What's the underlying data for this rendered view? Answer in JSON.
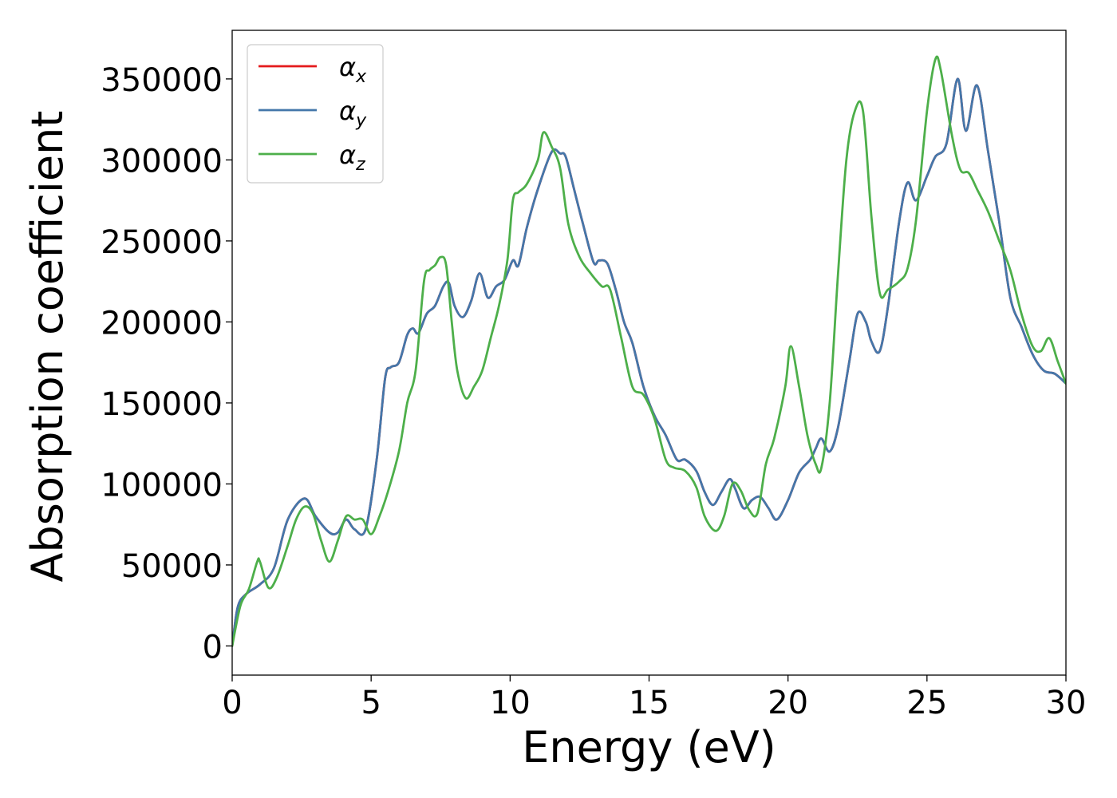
{
  "chart_data": {
    "type": "line",
    "title": "",
    "xlabel": "Energy (eV)",
    "ylabel": "Absorption coefficient",
    "xlim": [
      0,
      30
    ],
    "ylim": [
      -18000,
      380000
    ],
    "xticks": [
      0,
      5,
      10,
      15,
      20,
      25,
      30
    ],
    "yticks": [
      0,
      50000,
      100000,
      150000,
      200000,
      250000,
      300000,
      350000
    ],
    "xtick_labels": [
      "0",
      "5",
      "10",
      "15",
      "20",
      "25",
      "30"
    ],
    "ytick_labels": [
      "0",
      "50000",
      "100000",
      "150000",
      "200000",
      "250000",
      "300000",
      "350000"
    ],
    "grid": false,
    "legend_position": "top-left",
    "series": [
      {
        "name": "α",
        "subscript": "x",
        "color": "#e41a1c",
        "x": [
          0,
          0.2,
          0.5,
          1.0,
          1.5,
          2.0,
          2.6,
          3.0,
          3.5,
          3.8,
          4.1,
          4.4,
          4.8,
          5.2,
          5.5,
          5.7,
          6.0,
          6.3,
          6.5,
          6.7,
          7.0,
          7.3,
          7.6,
          7.8,
          8.0,
          8.3,
          8.6,
          8.9,
          9.2,
          9.5,
          9.8,
          10.1,
          10.3,
          10.6,
          11.0,
          11.5,
          11.8,
          12.0,
          12.3,
          12.6,
          13.0,
          13.2,
          13.5,
          13.8,
          14.1,
          14.4,
          14.8,
          15.2,
          15.6,
          16.0,
          16.3,
          16.7,
          17.0,
          17.3,
          17.6,
          17.9,
          18.1,
          18.4,
          18.7,
          19.0,
          19.3,
          19.6,
          20.0,
          20.4,
          20.8,
          21.0,
          21.2,
          21.5,
          21.8,
          22.2,
          22.5,
          22.8,
          23.0,
          23.3,
          23.6,
          24.0,
          24.3,
          24.6,
          25.0,
          25.3,
          25.7,
          26.1,
          26.4,
          26.8,
          27.2,
          27.6,
          28.0,
          28.4,
          28.8,
          29.2,
          29.6,
          30.0
        ],
        "y": [
          0,
          24000,
          32000,
          38000,
          48000,
          78000,
          91000,
          80000,
          70000,
          70000,
          78000,
          72000,
          72000,
          115000,
          165000,
          172000,
          175000,
          192000,
          196000,
          193000,
          205000,
          210000,
          222000,
          224000,
          210000,
          203000,
          213000,
          230000,
          215000,
          222000,
          226000,
          238000,
          235000,
          258000,
          282000,
          305000,
          304000,
          302000,
          282000,
          262000,
          237000,
          238000,
          236000,
          220000,
          200000,
          187000,
          160000,
          142000,
          130000,
          115000,
          115000,
          108000,
          95000,
          87000,
          95000,
          103000,
          97000,
          85000,
          90000,
          92000,
          85000,
          78000,
          90000,
          107000,
          115000,
          122000,
          128000,
          120000,
          135000,
          175000,
          205000,
          200000,
          188000,
          182000,
          210000,
          262000,
          286000,
          275000,
          290000,
          302000,
          310000,
          350000,
          318000,
          346000,
          305000,
          262000,
          215000,
          197000,
          180000,
          170000,
          168000,
          162000
        ]
      },
      {
        "name": "α",
        "subscript": "y",
        "color": "#4477aa",
        "x": [
          0,
          0.2,
          0.5,
          1.0,
          1.5,
          2.0,
          2.6,
          3.0,
          3.5,
          3.8,
          4.1,
          4.4,
          4.8,
          5.2,
          5.5,
          5.7,
          6.0,
          6.3,
          6.5,
          6.7,
          7.0,
          7.3,
          7.6,
          7.8,
          8.0,
          8.3,
          8.6,
          8.9,
          9.2,
          9.5,
          9.8,
          10.1,
          10.3,
          10.6,
          11.0,
          11.5,
          11.8,
          12.0,
          12.3,
          12.6,
          13.0,
          13.2,
          13.5,
          13.8,
          14.1,
          14.4,
          14.8,
          15.2,
          15.6,
          16.0,
          16.3,
          16.7,
          17.0,
          17.3,
          17.6,
          17.9,
          18.1,
          18.4,
          18.7,
          19.0,
          19.3,
          19.6,
          20.0,
          20.4,
          20.8,
          21.0,
          21.2,
          21.5,
          21.8,
          22.2,
          22.5,
          22.8,
          23.0,
          23.3,
          23.6,
          24.0,
          24.3,
          24.6,
          25.0,
          25.3,
          25.7,
          26.1,
          26.4,
          26.8,
          27.2,
          27.6,
          28.0,
          28.4,
          28.8,
          29.2,
          29.6,
          30.0
        ],
        "y": [
          0,
          24000,
          32000,
          38000,
          48000,
          78000,
          91000,
          80000,
          70000,
          70000,
          78000,
          72000,
          72000,
          115000,
          165000,
          172000,
          175000,
          192000,
          196000,
          193000,
          205000,
          210000,
          222000,
          224000,
          210000,
          203000,
          213000,
          230000,
          215000,
          222000,
          226000,
          238000,
          235000,
          258000,
          282000,
          305000,
          304000,
          302000,
          282000,
          262000,
          237000,
          238000,
          236000,
          220000,
          200000,
          187000,
          160000,
          142000,
          130000,
          115000,
          115000,
          108000,
          95000,
          87000,
          95000,
          103000,
          97000,
          85000,
          90000,
          92000,
          85000,
          78000,
          90000,
          107000,
          115000,
          122000,
          128000,
          120000,
          135000,
          175000,
          205000,
          200000,
          188000,
          182000,
          210000,
          262000,
          286000,
          275000,
          290000,
          302000,
          310000,
          350000,
          318000,
          346000,
          305000,
          262000,
          215000,
          197000,
          180000,
          170000,
          168000,
          162000
        ]
      },
      {
        "name": "α",
        "subscript": "z",
        "color": "#4daf4a",
        "x": [
          0,
          0.3,
          0.6,
          0.9,
          1.0,
          1.3,
          1.6,
          2.0,
          2.3,
          2.6,
          2.9,
          3.2,
          3.5,
          3.8,
          4.1,
          4.4,
          4.7,
          5.0,
          5.3,
          5.6,
          6.0,
          6.3,
          6.6,
          6.9,
          7.1,
          7.3,
          7.5,
          7.7,
          7.9,
          8.1,
          8.4,
          8.7,
          9.0,
          9.3,
          9.6,
          9.9,
          10.1,
          10.3,
          10.6,
          11.0,
          11.2,
          11.5,
          11.8,
          12.1,
          12.5,
          12.9,
          13.3,
          13.6,
          14.0,
          14.4,
          14.8,
          15.2,
          15.6,
          15.9,
          16.3,
          16.7,
          17.0,
          17.4,
          17.7,
          18.0,
          18.3,
          18.6,
          18.9,
          19.2,
          19.5,
          19.9,
          20.1,
          20.4,
          20.7,
          21.0,
          21.2,
          21.5,
          21.8,
          22.1,
          22.4,
          22.7,
          23.0,
          23.3,
          23.6,
          24.0,
          24.3,
          24.6,
          25.0,
          25.3,
          25.5,
          25.9,
          26.2,
          26.5,
          26.8,
          27.2,
          27.6,
          28.0,
          28.4,
          28.8,
          29.1,
          29.4,
          29.7,
          30.0
        ],
        "y": [
          0,
          25000,
          35000,
          52000,
          52000,
          36000,
          42000,
          62000,
          78000,
          86000,
          82000,
          65000,
          52000,
          65000,
          80000,
          78000,
          78000,
          69000,
          80000,
          95000,
          120000,
          150000,
          170000,
          225000,
          232000,
          235000,
          240000,
          235000,
          200000,
          170000,
          153000,
          160000,
          170000,
          190000,
          210000,
          238000,
          275000,
          280000,
          285000,
          300000,
          317000,
          308000,
          295000,
          260000,
          240000,
          230000,
          222000,
          220000,
          190000,
          160000,
          155000,
          140000,
          115000,
          110000,
          108000,
          98000,
          80000,
          71000,
          80000,
          100000,
          96000,
          84000,
          82000,
          112000,
          128000,
          160000,
          185000,
          160000,
          130000,
          112000,
          110000,
          150000,
          230000,
          300000,
          330000,
          330000,
          265000,
          218000,
          220000,
          225000,
          233000,
          262000,
          330000,
          362000,
          355000,
          315000,
          294000,
          292000,
          282000,
          268000,
          250000,
          232000,
          205000,
          185000,
          182000,
          190000,
          176000,
          162000
        ]
      }
    ]
  }
}
